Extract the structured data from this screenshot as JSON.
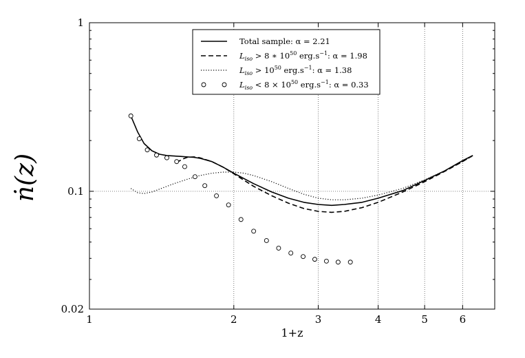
{
  "chart_data": {
    "type": "line",
    "title": "",
    "xlabel": "1+z",
    "ylabel": "ṅ(z)",
    "xscale": "log",
    "yscale": "log",
    "xlim": [
      1,
      7
    ],
    "ylim": [
      0.02,
      1
    ],
    "grid": true,
    "legend_position": "top-center",
    "x_ticks": [
      {
        "value": 1,
        "label": "1"
      },
      {
        "value": 2,
        "label": "2"
      },
      {
        "value": 3,
        "label": "3"
      },
      {
        "value": 4,
        "label": "4"
      },
      {
        "value": 5,
        "label": "5"
      },
      {
        "value": 6,
        "label": "6"
      }
    ],
    "y_ticks": [
      {
        "value": 0.02,
        "label": "0.02"
      },
      {
        "value": 0.1,
        "label": "0.1"
      },
      {
        "value": 1,
        "label": "1"
      }
    ],
    "series": [
      {
        "name": "Total sample: α = 2.21",
        "style": "solid",
        "x": [
          1.22,
          1.26,
          1.3,
          1.35,
          1.4,
          1.45,
          1.5,
          1.55,
          1.6,
          1.65,
          1.7,
          1.8,
          1.9,
          2.0,
          2.2,
          2.4,
          2.6,
          2.8,
          3.0,
          3.2,
          3.4,
          3.7,
          4.0,
          4.5,
          5.0,
          5.5,
          6.0,
          6.3
        ],
        "y": [
          0.28,
          0.225,
          0.192,
          0.174,
          0.166,
          0.163,
          0.162,
          0.161,
          0.16,
          0.159,
          0.157,
          0.15,
          0.139,
          0.128,
          0.111,
          0.099,
          0.091,
          0.086,
          0.0835,
          0.0825,
          0.0835,
          0.086,
          0.091,
          0.101,
          0.116,
          0.132,
          0.152,
          0.163
        ]
      },
      {
        "name": "L_iso > 8*10^50 erg.s^-1: α = 1.98",
        "style": "dashed",
        "x": [
          1.52,
          1.56,
          1.6,
          1.65,
          1.7,
          1.8,
          1.9,
          2.0,
          2.2,
          2.4,
          2.6,
          2.8,
          3.0,
          3.2,
          3.4,
          3.7,
          4.0,
          4.5,
          5.0,
          5.5,
          6.0,
          6.3
        ],
        "y": [
          0.148,
          0.155,
          0.159,
          0.16,
          0.158,
          0.15,
          0.139,
          0.127,
          0.107,
          0.094,
          0.085,
          0.079,
          0.076,
          0.075,
          0.076,
          0.08,
          0.086,
          0.099,
          0.114,
          0.131,
          0.15,
          0.163
        ]
      },
      {
        "name": "L_iso > 10^50 erg.s^-1: α = 1.38",
        "style": "dotted",
        "x": [
          1.22,
          1.26,
          1.3,
          1.35,
          1.4,
          1.5,
          1.6,
          1.7,
          1.8,
          1.9,
          2.0,
          2.1,
          2.2,
          2.4,
          2.6,
          2.8,
          3.0,
          3.2,
          3.4,
          3.7,
          4.0,
          4.5,
          5.0,
          5.5,
          6.0,
          6.3
        ],
        "y": [
          0.104,
          0.098,
          0.097,
          0.099,
          0.103,
          0.111,
          0.118,
          0.124,
          0.128,
          0.13,
          0.13,
          0.128,
          0.124,
          0.114,
          0.104,
          0.096,
          0.091,
          0.089,
          0.089,
          0.091,
          0.095,
          0.104,
          0.117,
          0.132,
          0.15,
          0.162
        ]
      },
      {
        "name": "L_iso < 8 × 10^50 erg.s^-1: α = 0.33",
        "style": "circles",
        "x": [
          1.22,
          1.27,
          1.32,
          1.38,
          1.45,
          1.52,
          1.58,
          1.66,
          1.74,
          1.84,
          1.95,
          2.07,
          2.2,
          2.34,
          2.48,
          2.63,
          2.79,
          2.95,
          3.12,
          3.3,
          3.5
        ],
        "y": [
          0.28,
          0.205,
          0.176,
          0.164,
          0.158,
          0.15,
          0.14,
          0.122,
          0.108,
          0.094,
          0.083,
          0.068,
          0.058,
          0.051,
          0.046,
          0.043,
          0.041,
          0.0395,
          0.0385,
          0.038,
          0.038
        ]
      }
    ],
    "legend": {
      "entries": [
        {
          "style": "solid",
          "parts": [
            {
              "t": "Total sample: α = 2.21"
            }
          ]
        },
        {
          "style": "dashed",
          "parts": [
            {
              "t": "L",
              "i": true
            },
            {
              "t": "iso",
              "sub": true
            },
            {
              "t": " > 8 ∗ 10"
            },
            {
              "t": "50",
              "sup": true
            },
            {
              "t": " erg.s"
            },
            {
              "t": "−1",
              "sup": true
            },
            {
              "t": ": α = 1.98"
            }
          ]
        },
        {
          "style": "dotted",
          "parts": [
            {
              "t": "L",
              "i": true
            },
            {
              "t": "iso",
              "sub": true
            },
            {
              "t": " > 10"
            },
            {
              "t": "50",
              "sup": true
            },
            {
              "t": " erg.s"
            },
            {
              "t": "−1",
              "sup": true
            },
            {
              "t": ": α = 1.38"
            }
          ]
        },
        {
          "style": "circles",
          "parts": [
            {
              "t": "L",
              "i": true
            },
            {
              "t": "iso",
              "sub": true
            },
            {
              "t": " < 8 × 10"
            },
            {
              "t": "50",
              "sup": true
            },
            {
              "t": " erg.s"
            },
            {
              "t": "−1",
              "sup": true
            },
            {
              "t": ": α = 0.33"
            }
          ]
        }
      ]
    }
  }
}
